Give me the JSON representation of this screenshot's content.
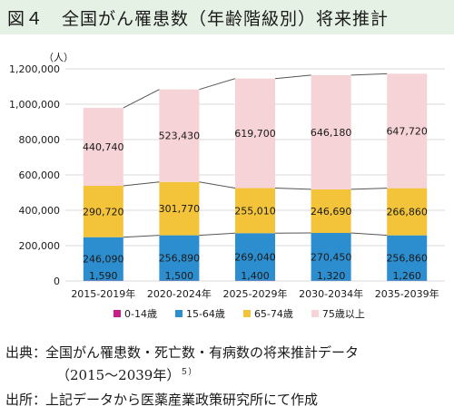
{
  "title": "図４　全国がん罹患数（年齢階級別）将来推計",
  "chart_data": {
    "type": "bar",
    "stacked": true,
    "unit": "（人）",
    "categories": [
      "2015-2019年",
      "2020-2024年",
      "2025-2029年",
      "2030-2034年",
      "2035-2039年"
    ],
    "series": [
      {
        "name": "0-14歳",
        "color": "#cc1d8a",
        "values": [
          1590,
          1500,
          1400,
          1320,
          1260
        ],
        "labels": [
          "1,590",
          "1,500",
          "1,400",
          "1,320",
          "1,260"
        ]
      },
      {
        "name": "15-64歳",
        "color": "#2d8ecf",
        "values": [
          246090,
          256890,
          269040,
          270450,
          256860
        ],
        "labels": [
          "246,090",
          "256,890",
          "269,040",
          "270,450",
          "256,860"
        ]
      },
      {
        "name": "65-74歳",
        "color": "#f3c43a",
        "values": [
          290720,
          301770,
          255010,
          246690,
          266860
        ],
        "labels": [
          "290,720",
          "301,770",
          "255,010",
          "246,690",
          "266,860"
        ]
      },
      {
        "name": "75歳以上",
        "color": "#f6d3d6",
        "values": [
          440740,
          523430,
          619700,
          646180,
          647720
        ],
        "labels": [
          "440,740",
          "523,430",
          "619,700",
          "646,180",
          "647,720"
        ]
      }
    ],
    "ylim": [
      0,
      1200000
    ],
    "yticks": [
      "0",
      "200,000",
      "400,000",
      "600,000",
      "800,000",
      "1,000,000",
      "1,200,000"
    ],
    "grid": true,
    "legend_position": "bottom"
  },
  "source": {
    "line1_label": "出典",
    "line1_text": "全国がん罹患数・死亡数・有病数の将来推計データ",
    "line2_text": "（2015～2039年）",
    "line2_sup": "５）",
    "line3_label": "出所",
    "line3_text": "上記データから医薬産業政策研究所にて作成",
    "separator": "："
  }
}
